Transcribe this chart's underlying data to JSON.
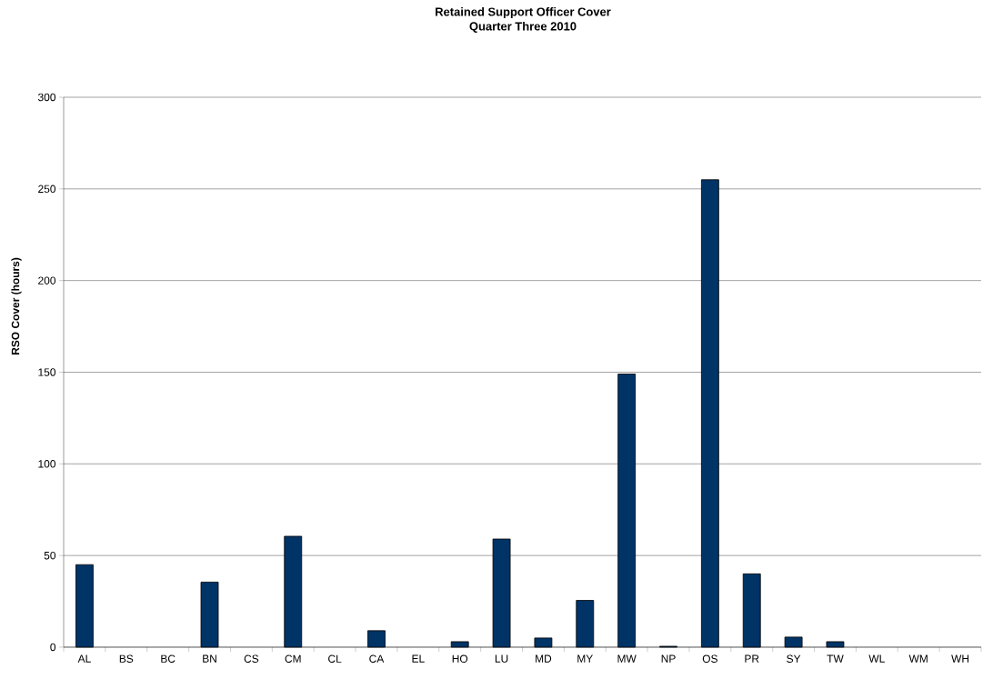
{
  "chart_data": {
    "type": "bar",
    "title": "Retained Support Officer Cover",
    "subtitle": "Quarter Three 2010",
    "ylabel": "RSO Cover (hours)",
    "categories": [
      "AL",
      "BS",
      "BC",
      "BN",
      "CS",
      "CM",
      "CL",
      "CA",
      "EL",
      "HO",
      "LU",
      "MD",
      "MY",
      "MW",
      "NP",
      "OS",
      "PR",
      "SY",
      "TW",
      "WL",
      "WM",
      "WH"
    ],
    "values": [
      45,
      0,
      0,
      35.5,
      0,
      60.5,
      0,
      9,
      0,
      3,
      59,
      5,
      25.5,
      149,
      0.5,
      255,
      40,
      5.5,
      3,
      0,
      0,
      0
    ],
    "color": "#003366",
    "ylim": [
      0,
      300
    ],
    "yticks": [
      0,
      50,
      100,
      150,
      200,
      250,
      300
    ],
    "grid": "y"
  }
}
